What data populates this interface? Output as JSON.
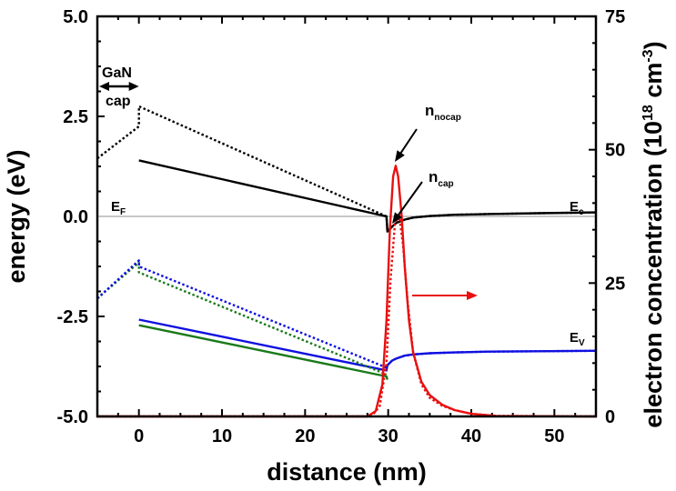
{
  "chart_data": {
    "type": "line",
    "xlabel": "distance (nm)",
    "ylabel": "energy (eV)",
    "y2label": "electron concentration (10^18 cm^-3)",
    "y2label_parts": {
      "main": "electron concentration (10",
      "sup1": "18",
      "mid": " cm",
      "sup2": "-3",
      "end": ")"
    },
    "xlim": [
      -5,
      55
    ],
    "ylim": [
      -5,
      5
    ],
    "y2lim": [
      0,
      75
    ],
    "xticks": [
      "0",
      "10",
      "20",
      "30",
      "40",
      "50"
    ],
    "xtick_values": [
      0,
      10,
      20,
      30,
      40,
      50
    ],
    "yticks": [
      "5.0",
      "2.5",
      "0.0",
      "-2.5",
      "-5.0"
    ],
    "ytick_values": [
      5,
      2.5,
      0,
      -2.5,
      -5
    ],
    "y2ticks": [
      "75",
      "50",
      "25",
      "0"
    ],
    "y2tick_values": [
      75,
      50,
      25,
      0
    ],
    "grid": false,
    "fermi_level": 0,
    "colors": {
      "ec": "#000000",
      "ev_blue": "#1010e0",
      "ev_green": "#1a7a1a",
      "n": "#e81010",
      "ef": "#c8c8c8"
    },
    "series": [
      {
        "key": "ec_cap",
        "axis": "left",
        "style": "solid",
        "color": "#000000",
        "x": [
          0,
          29.8,
          29.9,
          30.5,
          31,
          32,
          33,
          35,
          38,
          42,
          48,
          55
        ],
        "y": [
          1.4,
          0.0,
          -0.38,
          -0.25,
          -0.16,
          -0.08,
          -0.03,
          0.01,
          0.04,
          0.06,
          0.08,
          0.1
        ]
      },
      {
        "key": "ec_nocap",
        "axis": "left",
        "style": "dotted",
        "color": "#000000",
        "x": [
          -5,
          0,
          0,
          29.8,
          29.9,
          30.5,
          31,
          32,
          33,
          35,
          38,
          42,
          48,
          55
        ],
        "y": [
          1.45,
          2.25,
          2.75,
          0.0,
          -0.38,
          -0.25,
          -0.16,
          -0.08,
          -0.03,
          0.01,
          0.04,
          0.06,
          0.08,
          0.1
        ]
      },
      {
        "key": "ev_blue_cap",
        "axis": "left",
        "style": "solid",
        "color": "#1010e0",
        "x": [
          0,
          29.8,
          29.9,
          30.5,
          31,
          32,
          33,
          35,
          38,
          42,
          48,
          55
        ],
        "y": [
          -2.58,
          -3.85,
          -3.72,
          -3.6,
          -3.55,
          -3.48,
          -3.45,
          -3.42,
          -3.4,
          -3.38,
          -3.37,
          -3.36
        ]
      },
      {
        "key": "ev_green_cap",
        "axis": "left",
        "style": "solid",
        "color": "#1a7a1a",
        "x": [
          0,
          29.8,
          29.9
        ],
        "y": [
          -2.72,
          -4.0,
          -4.08
        ]
      },
      {
        "key": "ev_green_nocap",
        "axis": "left",
        "style": "dotted",
        "color": "#1a7a1a",
        "x": [
          -5,
          0,
          0,
          29.8
        ],
        "y": [
          -2.05,
          -1.15,
          -1.4,
          -3.95
        ]
      },
      {
        "key": "ev_blue_nocap",
        "axis": "left",
        "style": "dotted",
        "color": "#1010e0",
        "x": [
          -5,
          0,
          0,
          29.8,
          29.9,
          30.5,
          31,
          32,
          33,
          35,
          38,
          42,
          48,
          55
        ],
        "y": [
          -2.05,
          -1.1,
          -1.25,
          -3.78,
          -3.72,
          -3.6,
          -3.55,
          -3.48,
          -3.45,
          -3.42,
          -3.4,
          -3.38,
          -3.37,
          -3.36
        ]
      },
      {
        "key": "n_cap",
        "axis": "right",
        "style": "dotted",
        "color": "#e81010",
        "x": [
          -5,
          28,
          29,
          29.8,
          30.3,
          30.8,
          31.3,
          31.8,
          32.3,
          33,
          34,
          35,
          36.5,
          38,
          40,
          43,
          55
        ],
        "y": [
          0,
          0,
          2,
          10,
          26,
          36,
          38,
          32,
          22,
          12,
          6,
          3.5,
          2,
          1.2,
          0.5,
          0.1,
          0
        ]
      },
      {
        "key": "n_nocap",
        "axis": "right",
        "style": "solid",
        "color": "#e81010",
        "x": [
          -5,
          27.5,
          28.5,
          29.3,
          29.8,
          30.2,
          30.6,
          30.9,
          31.2,
          31.6,
          32,
          32.5,
          33,
          34,
          35,
          36.5,
          38,
          40,
          43,
          55
        ],
        "y": [
          0,
          0,
          1,
          6,
          18,
          35,
          45,
          47,
          45,
          38,
          28,
          18,
          12,
          6.5,
          4,
          2.2,
          1.2,
          0.5,
          0.1,
          0
        ]
      }
    ],
    "annotations": {
      "gan": "GaN",
      "cap": "cap",
      "ef": {
        "main": "E",
        "sub": "F"
      },
      "ec": {
        "main": "E",
        "sub": "c"
      },
      "ev": {
        "main": "E",
        "sub": "V"
      },
      "n_nocap": {
        "main": "n",
        "sub": "nocap"
      },
      "n_cap": {
        "main": "n",
        "sub": "cap"
      }
    }
  }
}
